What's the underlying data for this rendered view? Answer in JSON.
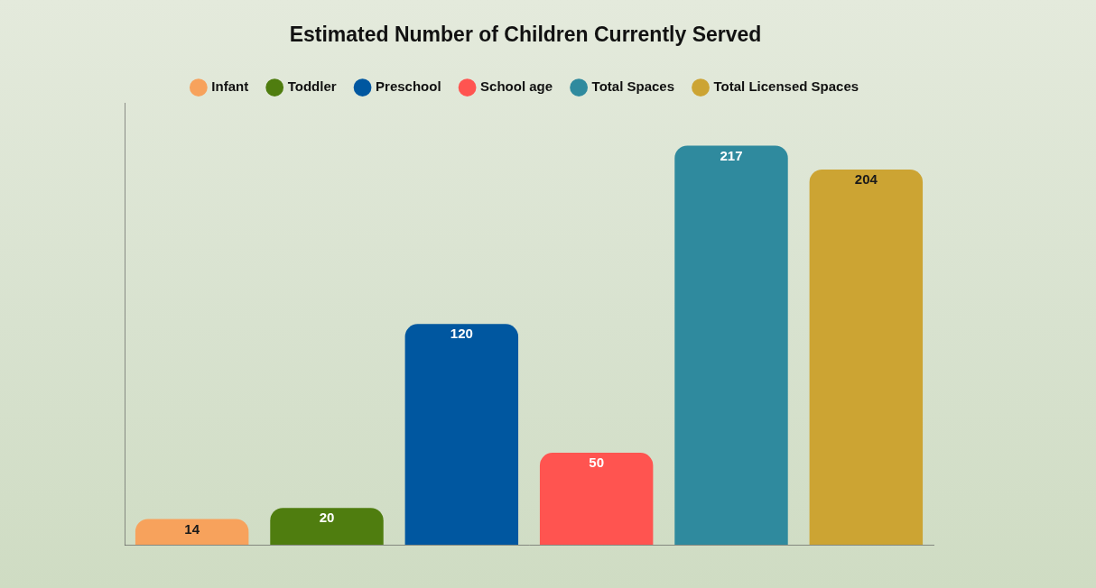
{
  "chart_data": {
    "type": "bar",
    "title": "Estimated Number of Children Currently Served",
    "categories": [
      "Infant",
      "Toddler",
      "Preschool",
      "School age",
      "Total Spaces",
      "Total Licensed Spaces"
    ],
    "values": [
      14,
      20,
      120,
      50,
      217,
      204
    ],
    "colors": [
      "#f7a25c",
      "#4f7d0f",
      "#0057a0",
      "#ff5450",
      "#2f8a9e",
      "#cca433"
    ],
    "ylim": [
      0,
      240
    ],
    "legend": "top",
    "data_labels": true,
    "tick_labels": false,
    "grid": false
  }
}
